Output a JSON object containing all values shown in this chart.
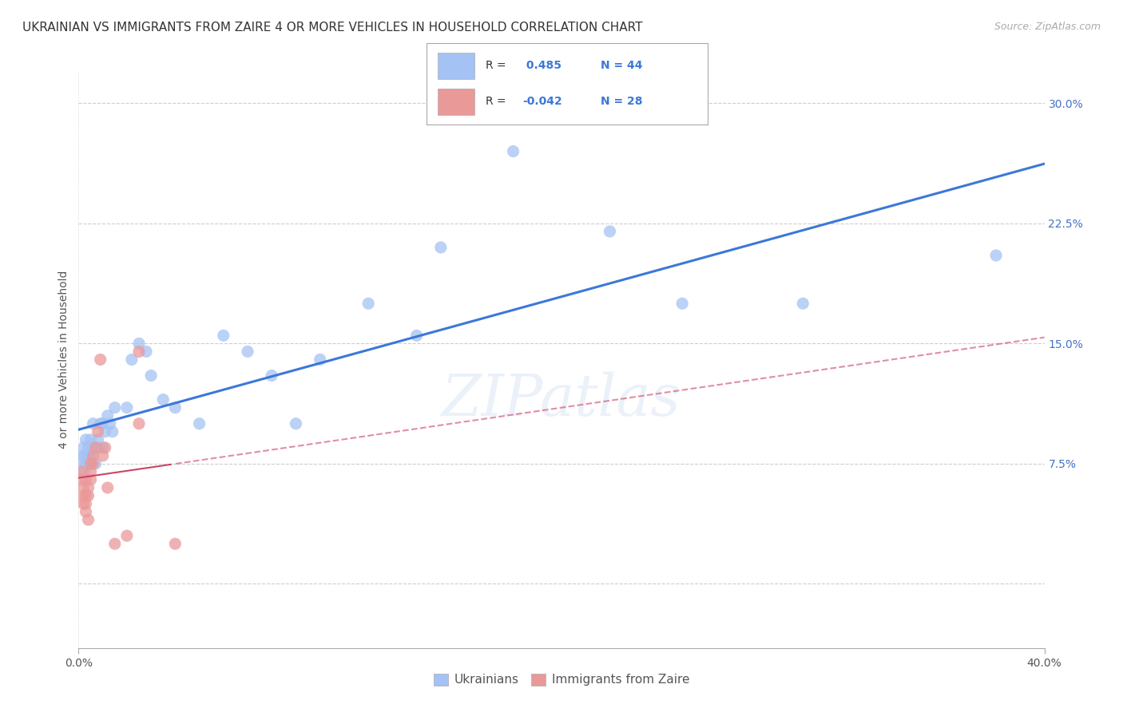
{
  "title": "UKRAINIAN VS IMMIGRANTS FROM ZAIRE 4 OR MORE VEHICLES IN HOUSEHOLD CORRELATION CHART",
  "source": "Source: ZipAtlas.com",
  "ylabel": "4 or more Vehicles in Household",
  "xlim": [
    0.0,
    0.4
  ],
  "ylim": [
    -0.04,
    0.32
  ],
  "xtick_positions": [
    0.0,
    0.4
  ],
  "xtick_labels": [
    "0.0%",
    "40.0%"
  ],
  "ytick_positions": [
    0.0,
    0.075,
    0.15,
    0.225,
    0.3
  ],
  "ytick_labels": [
    "",
    "7.5%",
    "15.0%",
    "22.5%",
    "30.0%"
  ],
  "background_color": "#ffffff",
  "grid_color": "#c8c8c8",
  "blue_color": "#a4c2f4",
  "blue_line_color": "#3c78d8",
  "pink_color": "#ea9999",
  "pink_line_color": "#cc4466",
  "R_blue": "0.485",
  "N_blue": "44",
  "R_pink": "-0.042",
  "N_pink": "28",
  "legend_label_blue": "Ukrainians",
  "legend_label_pink": "Immigrants from Zaire",
  "blue_x": [
    0.001,
    0.002,
    0.002,
    0.003,
    0.003,
    0.004,
    0.004,
    0.005,
    0.005,
    0.005,
    0.006,
    0.006,
    0.007,
    0.008,
    0.008,
    0.009,
    0.01,
    0.01,
    0.011,
    0.012,
    0.013,
    0.014,
    0.015,
    0.02,
    0.022,
    0.025,
    0.028,
    0.03,
    0.035,
    0.04,
    0.05,
    0.06,
    0.07,
    0.08,
    0.09,
    0.1,
    0.12,
    0.14,
    0.15,
    0.18,
    0.22,
    0.25,
    0.3,
    0.38
  ],
  "blue_y": [
    0.075,
    0.08,
    0.085,
    0.075,
    0.09,
    0.08,
    0.085,
    0.075,
    0.08,
    0.09,
    0.085,
    0.1,
    0.075,
    0.09,
    0.085,
    0.1,
    0.1,
    0.085,
    0.095,
    0.105,
    0.1,
    0.095,
    0.11,
    0.11,
    0.14,
    0.15,
    0.145,
    0.13,
    0.115,
    0.11,
    0.1,
    0.155,
    0.145,
    0.13,
    0.1,
    0.14,
    0.175,
    0.155,
    0.21,
    0.27,
    0.22,
    0.175,
    0.175,
    0.205
  ],
  "blue_sizes": [
    500,
    120,
    120,
    120,
    120,
    120,
    120,
    120,
    120,
    120,
    120,
    120,
    120,
    120,
    120,
    120,
    120,
    120,
    120,
    120,
    120,
    120,
    120,
    120,
    120,
    120,
    120,
    120,
    120,
    120,
    120,
    120,
    120,
    120,
    120,
    120,
    120,
    120,
    120,
    120,
    120,
    120,
    120,
    120
  ],
  "pink_x": [
    0.001,
    0.001,
    0.002,
    0.002,
    0.002,
    0.003,
    0.003,
    0.003,
    0.003,
    0.004,
    0.004,
    0.004,
    0.005,
    0.005,
    0.005,
    0.006,
    0.006,
    0.007,
    0.008,
    0.009,
    0.01,
    0.011,
    0.012,
    0.015,
    0.02,
    0.025,
    0.025,
    0.04
  ],
  "pink_y": [
    0.07,
    0.065,
    0.06,
    0.055,
    0.05,
    0.065,
    0.055,
    0.05,
    0.045,
    0.06,
    0.055,
    0.04,
    0.07,
    0.065,
    0.075,
    0.08,
    0.075,
    0.085,
    0.095,
    0.14,
    0.08,
    0.085,
    0.06,
    0.025,
    0.03,
    0.145,
    0.1,
    0.025
  ],
  "pink_sizes": [
    120,
    120,
    120,
    120,
    120,
    120,
    120,
    120,
    120,
    120,
    120,
    120,
    120,
    120,
    120,
    120,
    120,
    120,
    120,
    120,
    120,
    120,
    120,
    120,
    120,
    120,
    120,
    120
  ],
  "watermark_text": "ZIPatlas",
  "title_fontsize": 11,
  "axis_label_fontsize": 10,
  "tick_fontsize": 10,
  "source_fontsize": 9
}
